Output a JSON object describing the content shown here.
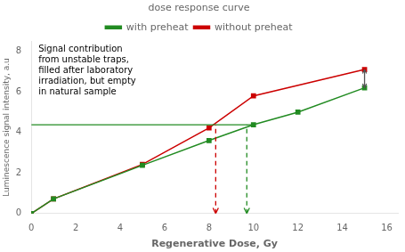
{
  "chart_data": {
    "type": "line",
    "xlabel": "Regenerative Dose, Gy",
    "ylabel": "Luminescence signal intensity, a.u",
    "xlim": [
      0,
      16.5
    ],
    "ylim": [
      0,
      8.5
    ],
    "xticks": [
      0,
      2,
      4,
      6,
      8,
      10,
      12,
      14,
      16
    ],
    "yticks": [
      0,
      2,
      4,
      6,
      8
    ],
    "grid": false,
    "legend": "top",
    "legend_title": "dose response curve",
    "series": [
      {
        "name": "with preheat",
        "color": "#228B22",
        "marker": "square",
        "line_style": "solid",
        "x": [
          0,
          1,
          5,
          8,
          10,
          12,
          15
        ],
        "values": [
          0,
          0.72,
          2.38,
          3.6,
          4.38,
          5.0,
          6.2
        ]
      },
      {
        "name": "without preheat",
        "color": "#CC0000",
        "marker": "square",
        "line_style": "solid",
        "x": [
          0,
          1,
          5,
          8,
          10,
          15
        ],
        "values": [
          0,
          0.72,
          2.42,
          4.22,
          5.8,
          7.1
        ]
      }
    ],
    "lines": [
      {
        "x": [
          0,
          10
        ],
        "y": [
          4.38,
          4.38
        ],
        "color": "#228B22",
        "line_style": "solid"
      },
      {
        "x": [
          8.3,
          8.3
        ],
        "y": [
          0,
          4.38
        ],
        "color": "#CC0000",
        "line_style": "dashed",
        "arrow": "bottom"
      },
      {
        "x": [
          9.7,
          9.7
        ],
        "y": [
          0,
          4.38
        ],
        "color": "#228B22",
        "line_style": "dashed",
        "arrow": "bottom"
      },
      {
        "x": [
          15,
          15
        ],
        "y": [
          6.2,
          7.1
        ],
        "color": "#555555",
        "line_style": "solid",
        "arrow": "both"
      }
    ],
    "annotations": [
      {
        "text": "Signal contribution\nfrom unstable traps,\nfilled after laboratory\nirradiation, but empty\nin natural sample"
      }
    ]
  }
}
